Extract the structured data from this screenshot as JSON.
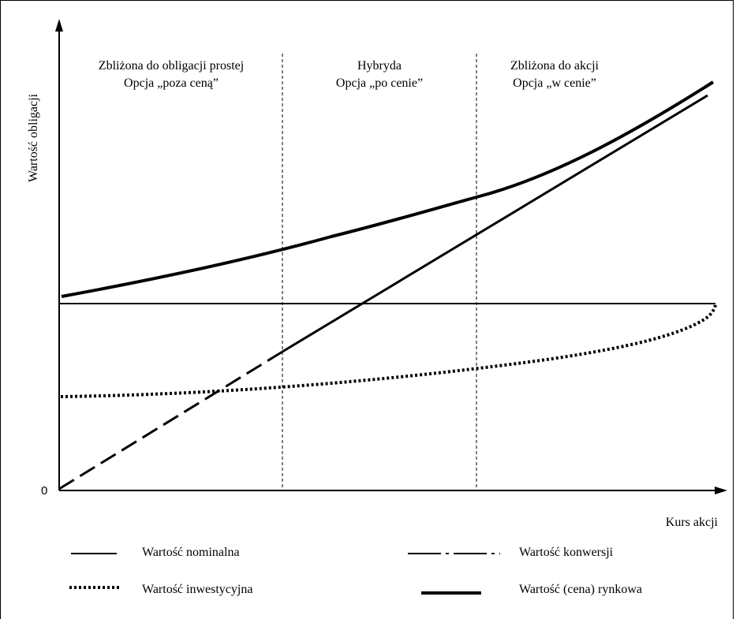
{
  "diagram": {
    "y_axis_label": "Wartość obligacji",
    "x_axis_label": "Kurs akcji",
    "origin_label": "0",
    "regions": [
      {
        "line1": "Zbliżona do obligacji prostej",
        "line2": "Opcja „poza ceną”"
      },
      {
        "line1": "Hybryda",
        "line2": "Opcja „po cenie”"
      },
      {
        "line1": "Zbliżona do akcji",
        "line2": "Opcja „w cenie”"
      }
    ],
    "legend": {
      "nominal": "Wartość nominalna",
      "conversion": "Wartość konwersji",
      "investment": "Wartość inwestycyjna",
      "market": "Wartość (cena) rynkowa"
    }
  }
}
